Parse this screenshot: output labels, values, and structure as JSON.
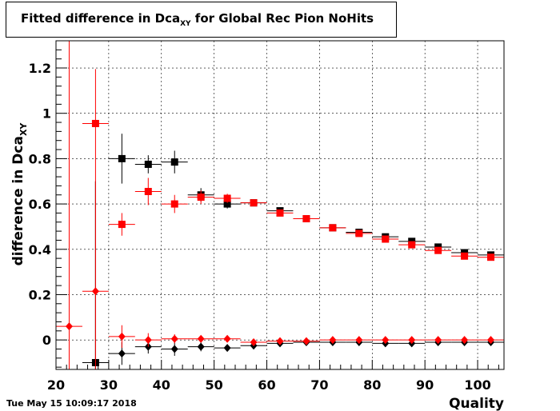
{
  "chart_data": {
    "type": "scatter",
    "title_main": "Fitted difference in Dca",
    "title_sub": "XY",
    "title_rest": " for Global Rec Pion NoHits",
    "xlabel": "Quality",
    "ylabel_main": "difference in Dca",
    "ylabel_sub": "XY",
    "xlim": [
      20,
      105
    ],
    "ylim": [
      -0.13,
      1.32
    ],
    "x_ticks": [
      20,
      30,
      40,
      50,
      60,
      70,
      80,
      90,
      100
    ],
    "y_ticks": [
      0,
      0.2,
      0.4,
      0.6,
      0.8,
      1,
      1.2
    ],
    "y_tick_labels": [
      "0",
      "0.2",
      "0.4",
      "0.6",
      "0.8",
      "1",
      "1.2"
    ],
    "grid": true,
    "bin_half_width": 2.5,
    "series": [
      {
        "marker": "square",
        "color": "#000000",
        "points": [
          {
            "x": 27.5,
            "y": -0.1,
            "err": 0.8
          },
          {
            "x": 32.5,
            "y": 0.8,
            "err": 0.11
          },
          {
            "x": 37.5,
            "y": 0.775,
            "err": 0.04
          },
          {
            "x": 42.5,
            "y": 0.785,
            "err": 0.05
          },
          {
            "x": 47.5,
            "y": 0.64,
            "err": 0.03
          },
          {
            "x": 52.5,
            "y": 0.6,
            "err": 0.02
          },
          {
            "x": 57.5,
            "y": 0.605,
            "err": 0.01
          },
          {
            "x": 62.5,
            "y": 0.57,
            "err": 0.01
          },
          {
            "x": 67.5,
            "y": 0.535,
            "err": 0.01
          },
          {
            "x": 72.5,
            "y": 0.495,
            "err": 0.01
          },
          {
            "x": 77.5,
            "y": 0.475,
            "err": 0.01
          },
          {
            "x": 82.5,
            "y": 0.455,
            "err": 0.01
          },
          {
            "x": 87.5,
            "y": 0.435,
            "err": 0.01
          },
          {
            "x": 92.5,
            "y": 0.41,
            "err": 0.01
          },
          {
            "x": 97.5,
            "y": 0.385,
            "err": 0.01
          },
          {
            "x": 102.5,
            "y": 0.375,
            "err": 0.01
          }
        ]
      },
      {
        "marker": "diamond",
        "color": "#000000",
        "points": [
          {
            "x": 27.5,
            "y": -0.1,
            "err": 0.8
          },
          {
            "x": 32.5,
            "y": -0.06,
            "err": 0.05
          },
          {
            "x": 37.5,
            "y": -0.03,
            "err": 0.03
          },
          {
            "x": 42.5,
            "y": -0.04,
            "err": 0.03
          },
          {
            "x": 47.5,
            "y": -0.03,
            "err": 0.02
          },
          {
            "x": 52.5,
            "y": -0.035,
            "err": 0.015
          },
          {
            "x": 57.5,
            "y": -0.025,
            "err": 0.01
          },
          {
            "x": 62.5,
            "y": -0.015,
            "err": 0.01
          },
          {
            "x": 67.5,
            "y": -0.01,
            "err": 0.01
          },
          {
            "x": 72.5,
            "y": -0.01,
            "err": 0.01
          },
          {
            "x": 77.5,
            "y": -0.01,
            "err": 0.01
          },
          {
            "x": 82.5,
            "y": -0.015,
            "err": 0.01
          },
          {
            "x": 87.5,
            "y": -0.015,
            "err": 0.01
          },
          {
            "x": 92.5,
            "y": -0.01,
            "err": 0.01
          },
          {
            "x": 97.5,
            "y": -0.01,
            "err": 0.01
          },
          {
            "x": 102.5,
            "y": -0.01,
            "err": 0.01
          }
        ]
      },
      {
        "marker": "square",
        "color": "#ff0000",
        "points": [
          {
            "x": 27.5,
            "y": 0.955,
            "err": 0.24
          },
          {
            "x": 32.5,
            "y": 0.51,
            "err": 0.05
          },
          {
            "x": 37.5,
            "y": 0.655,
            "err": 0.06
          },
          {
            "x": 42.5,
            "y": 0.6,
            "err": 0.04
          },
          {
            "x": 47.5,
            "y": 0.63,
            "err": 0.03
          },
          {
            "x": 52.5,
            "y": 0.625,
            "err": 0.02
          },
          {
            "x": 57.5,
            "y": 0.605,
            "err": 0.01
          },
          {
            "x": 62.5,
            "y": 0.56,
            "err": 0.01
          },
          {
            "x": 67.5,
            "y": 0.535,
            "err": 0.01
          },
          {
            "x": 72.5,
            "y": 0.495,
            "err": 0.01
          },
          {
            "x": 77.5,
            "y": 0.47,
            "err": 0.01
          },
          {
            "x": 82.5,
            "y": 0.445,
            "err": 0.01
          },
          {
            "x": 87.5,
            "y": 0.42,
            "err": 0.01
          },
          {
            "x": 92.5,
            "y": 0.395,
            "err": 0.01
          },
          {
            "x": 97.5,
            "y": 0.37,
            "err": 0.01
          },
          {
            "x": 102.5,
            "y": 0.365,
            "err": 0.01
          }
        ]
      },
      {
        "marker": "diamond",
        "color": "#ff0000",
        "points": [
          {
            "x": 22.5,
            "y": 0.06,
            "err": 1.6
          },
          {
            "x": 27.5,
            "y": 0.215,
            "err": 0.5
          },
          {
            "x": 32.5,
            "y": 0.015,
            "err": 0.05
          },
          {
            "x": 37.5,
            "y": 0.0,
            "err": 0.03
          },
          {
            "x": 42.5,
            "y": 0.005,
            "err": 0.02
          },
          {
            "x": 47.5,
            "y": 0.005,
            "err": 0.01
          },
          {
            "x": 52.5,
            "y": 0.005,
            "err": 0.01
          },
          {
            "x": 57.5,
            "y": -0.01,
            "err": 0.01
          },
          {
            "x": 62.5,
            "y": -0.005,
            "err": 0.01
          },
          {
            "x": 67.5,
            "y": -0.005,
            "err": 0.01
          },
          {
            "x": 72.5,
            "y": 0.0,
            "err": 0.005
          },
          {
            "x": 77.5,
            "y": 0.0,
            "err": 0.005
          },
          {
            "x": 82.5,
            "y": 0.0,
            "err": 0.005
          },
          {
            "x": 87.5,
            "y": 0.0,
            "err": 0.005
          },
          {
            "x": 92.5,
            "y": 0.0,
            "err": 0.005
          },
          {
            "x": 97.5,
            "y": 0.0,
            "err": 0.005
          },
          {
            "x": 102.5,
            "y": 0.0,
            "err": 0.005
          }
        ]
      }
    ]
  },
  "footer": {
    "timestamp": "Tue May 15 10:09:17 2018"
  }
}
